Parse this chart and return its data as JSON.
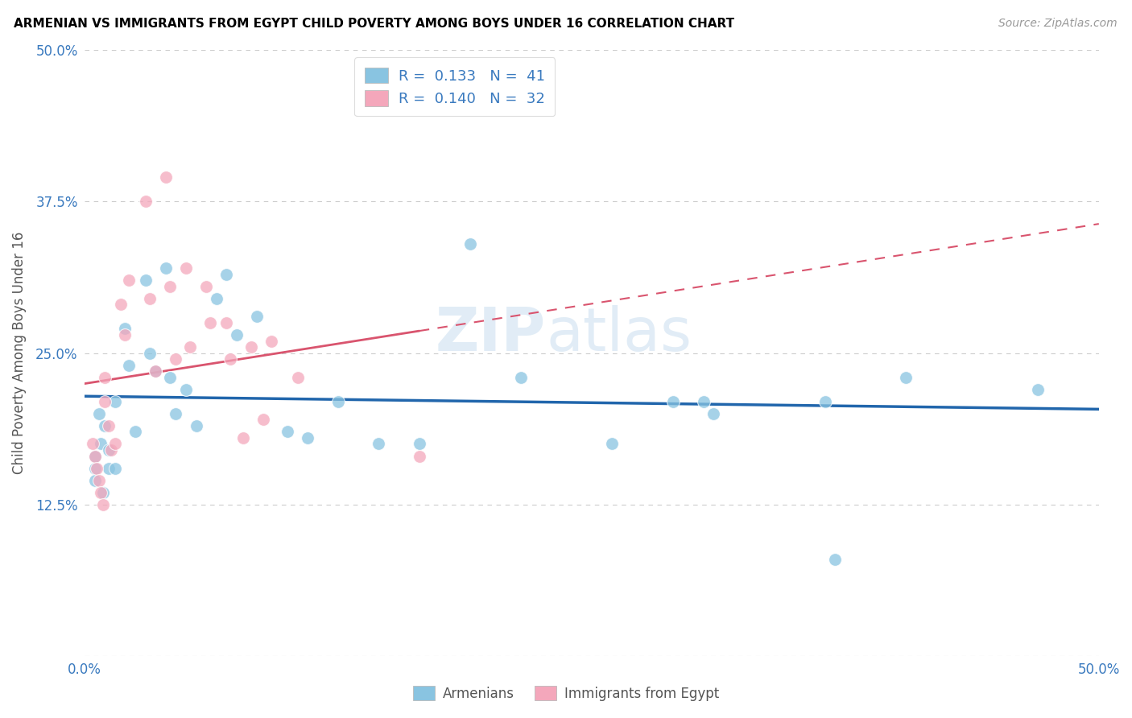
{
  "title": "ARMENIAN VS IMMIGRANTS FROM EGYPT CHILD POVERTY AMONG BOYS UNDER 16 CORRELATION CHART",
  "source": "Source: ZipAtlas.com",
  "ylabel": "Child Poverty Among Boys Under 16",
  "xlim": [
    0.0,
    0.5
  ],
  "ylim": [
    0.0,
    0.5
  ],
  "xticks": [
    0.0,
    0.125,
    0.25,
    0.375,
    0.5
  ],
  "yticks": [
    0.0,
    0.125,
    0.25,
    0.375,
    0.5
  ],
  "xticklabels": [
    "0.0%",
    "",
    "",
    "",
    "50.0%"
  ],
  "yticklabels": [
    "",
    "12.5%",
    "25.0%",
    "37.5%",
    "50.0%"
  ],
  "color_armenian": "#89c4e1",
  "color_egypt": "#f4a7bb",
  "color_line_armenian": "#2166ac",
  "color_line_egypt": "#d9546e",
  "watermark_zip": "ZIP",
  "watermark_atlas": "atlas",
  "arm_x": [
    0.005,
    0.005,
    0.005,
    0.007,
    0.008,
    0.009,
    0.01,
    0.012,
    0.012,
    0.015,
    0.015,
    0.02,
    0.022,
    0.025,
    0.03,
    0.032,
    0.035,
    0.04,
    0.042,
    0.045,
    0.05,
    0.055,
    0.065,
    0.07,
    0.075,
    0.085,
    0.1,
    0.11,
    0.125,
    0.145,
    0.165,
    0.19,
    0.215,
    0.26,
    0.29,
    0.305,
    0.31,
    0.365,
    0.37,
    0.405,
    0.47
  ],
  "arm_y": [
    0.165,
    0.155,
    0.145,
    0.2,
    0.175,
    0.135,
    0.19,
    0.17,
    0.155,
    0.21,
    0.155,
    0.27,
    0.24,
    0.185,
    0.31,
    0.25,
    0.235,
    0.32,
    0.23,
    0.2,
    0.22,
    0.19,
    0.295,
    0.315,
    0.265,
    0.28,
    0.185,
    0.18,
    0.21,
    0.175,
    0.175,
    0.34,
    0.23,
    0.175,
    0.21,
    0.21,
    0.2,
    0.21,
    0.08,
    0.23,
    0.22
  ],
  "eg_x": [
    0.004,
    0.005,
    0.006,
    0.007,
    0.008,
    0.009,
    0.01,
    0.01,
    0.012,
    0.013,
    0.015,
    0.018,
    0.02,
    0.022,
    0.03,
    0.032,
    0.035,
    0.04,
    0.042,
    0.045,
    0.05,
    0.052,
    0.06,
    0.062,
    0.07,
    0.072,
    0.078,
    0.082,
    0.088,
    0.092,
    0.105,
    0.165
  ],
  "eg_y": [
    0.175,
    0.165,
    0.155,
    0.145,
    0.135,
    0.125,
    0.23,
    0.21,
    0.19,
    0.17,
    0.175,
    0.29,
    0.265,
    0.31,
    0.375,
    0.295,
    0.235,
    0.395,
    0.305,
    0.245,
    0.32,
    0.255,
    0.305,
    0.275,
    0.275,
    0.245,
    0.18,
    0.255,
    0.195,
    0.26,
    0.23,
    0.165
  ]
}
